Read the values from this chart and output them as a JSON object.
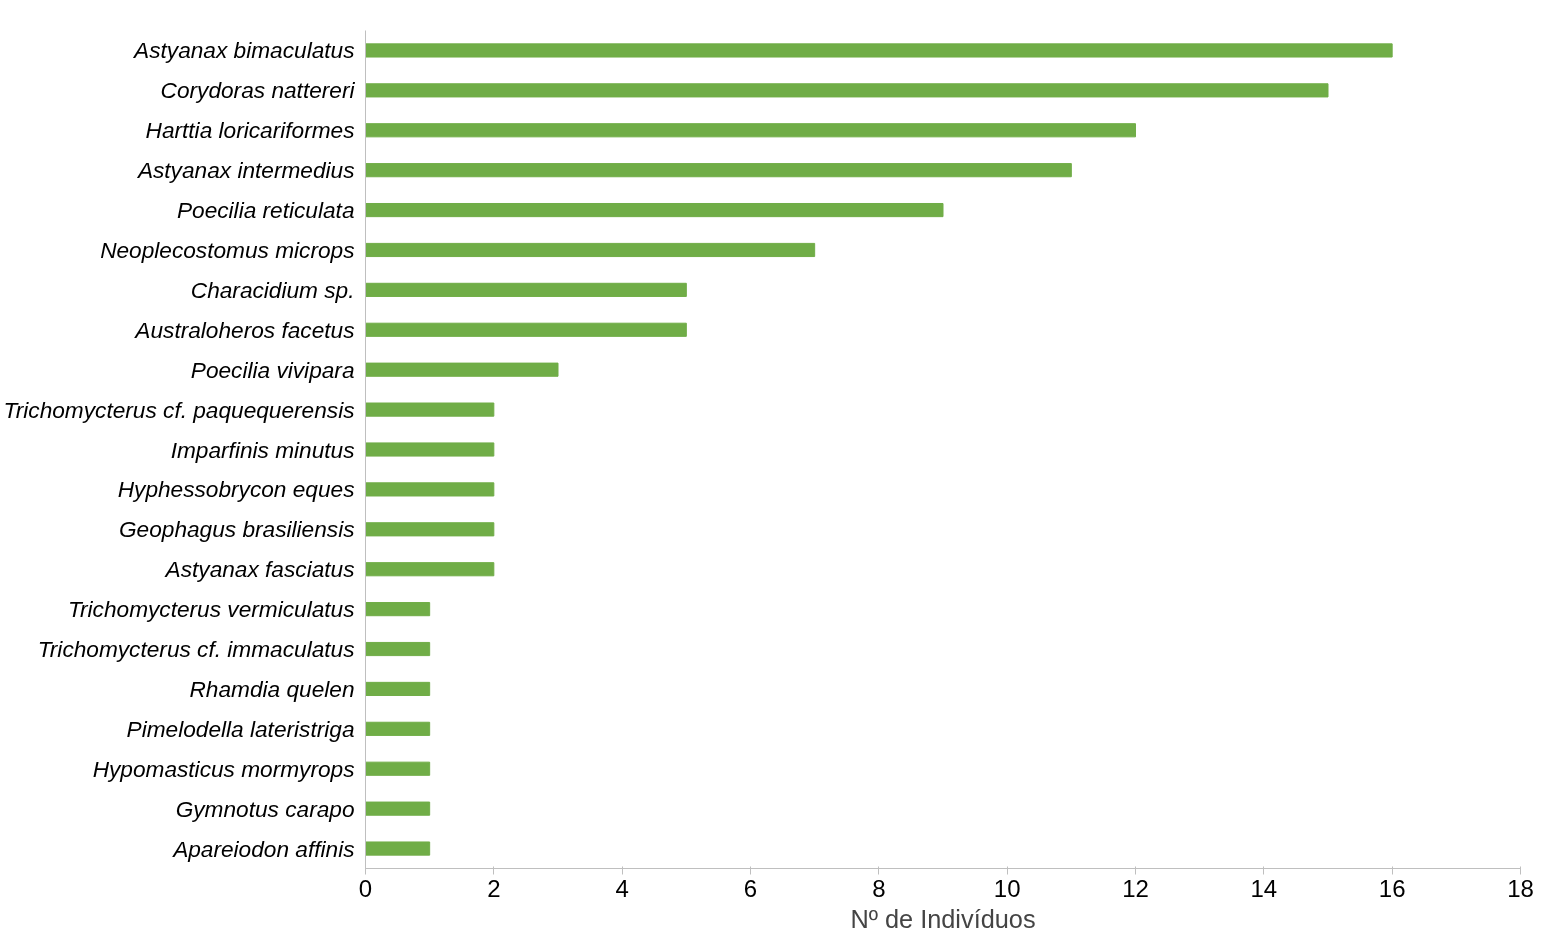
{
  "chart_data": {
    "type": "bar",
    "orientation": "horizontal",
    "xlabel": "Nº de Indivíduos",
    "categories": [
      "Astyanax bimaculatus",
      "Corydoras nattereri",
      "Harttia loricariformes",
      "Astyanax intermedius",
      "Poecilia reticulata",
      "Neoplecostomus microps",
      "Characidium sp.",
      "Australoheros facetus",
      "Poecilia vivipara",
      "Trichomycterus cf. paquequerensis",
      "Imparfinis minutus",
      "Hyphessobrycon eques",
      "Geophagus brasiliensis",
      "Astyanax fasciatus",
      "Trichomycterus vermiculatus",
      "Trichomycterus cf. immaculatus",
      "Rhamdia quelen",
      "Pimelodella lateristriga",
      "Hypomasticus mormyrops",
      "Gymnotus carapo",
      "Apareiodon affinis"
    ],
    "values": [
      16,
      15,
      12,
      11,
      9,
      7,
      5,
      5,
      3,
      2,
      2,
      2,
      2,
      2,
      1,
      1,
      1,
      1,
      1,
      1,
      1
    ],
    "color": "#70ad47",
    "xlim": [
      0,
      18
    ],
    "xticks": [
      0,
      2,
      4,
      6,
      8,
      10,
      12,
      14,
      16,
      18
    ],
    "grid": false
  }
}
